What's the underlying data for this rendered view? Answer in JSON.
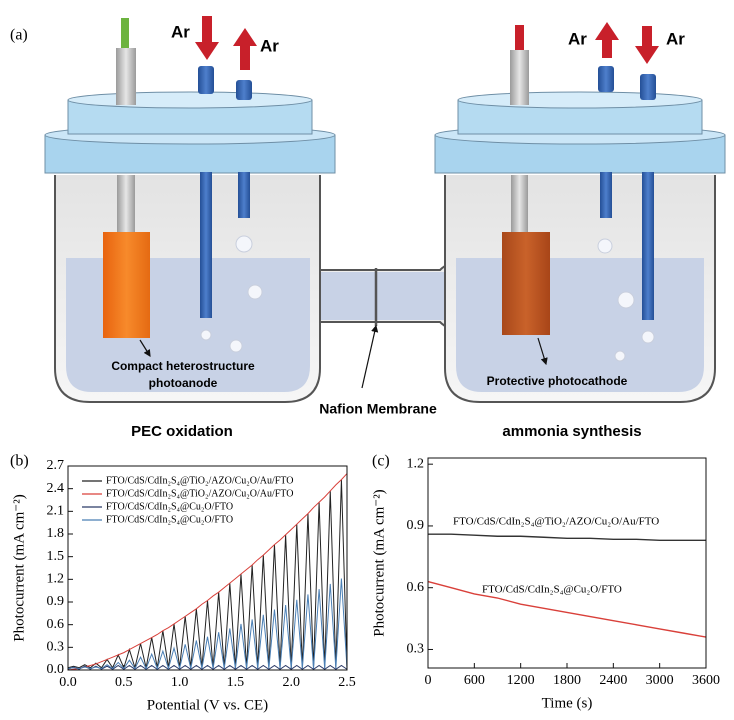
{
  "diagram": {
    "panel": "(a)",
    "gas_labels": [
      "Ar",
      "Ar",
      "Ar",
      "Ar"
    ],
    "photoanode_label": [
      "Compact heterostructure",
      "photoanode"
    ],
    "photocathode_label": "Protective photocathode",
    "membrane_label": "Nafion Membrane",
    "left_cell_label": "PEC oxidation",
    "right_cell_label": "ammonia synthesis"
  },
  "chart_data": [
    {
      "type": "line",
      "panel": "(b)",
      "x_label": "Potential (V vs. CE)",
      "y_label": "Photocurrent (mA cm⁻²)",
      "xlim": [
        0,
        2.5
      ],
      "ylim": [
        0,
        2.7
      ],
      "xticks": [
        {
          "value": 0,
          "label": "0.0"
        },
        0.5,
        {
          "value": 1,
          "label": "1.0"
        },
        1.5,
        {
          "value": 2,
          "label": "2.0"
        },
        2.5
      ],
      "yticks": [
        {
          "value": 0,
          "label": "0.0"
        },
        0.3,
        0.6,
        0.9,
        1.2,
        1.5,
        1.8,
        2.1,
        2.4,
        2.7
      ],
      "legend": "upper left",
      "x": [
        0,
        0.05,
        0.1,
        0.15,
        0.2,
        0.25,
        0.3,
        0.35,
        0.4,
        0.45,
        0.5,
        0.55,
        0.6,
        0.65,
        0.7,
        0.75,
        0.8,
        0.85,
        0.9,
        0.95,
        1,
        1.05,
        1.1,
        1.15,
        1.2,
        1.25,
        1.3,
        1.35,
        1.4,
        1.45,
        1.5,
        1.55,
        1.6,
        1.65,
        1.7,
        1.75,
        1.8,
        1.85,
        1.9,
        1.95,
        2,
        2.05,
        2.1,
        2.15,
        2.2,
        2.25,
        2.3,
        2.35,
        2.4,
        2.45,
        2.5
      ],
      "series": [
        {
          "name": "FTO/CdS/CdIn₂S₄@TiO₂/AZO/Cu₂O/Au/FTO",
          "color": "#222222",
          "values": [
            0.03,
            0.05,
            0.03,
            0.07,
            0.03,
            0.09,
            0.03,
            0.14,
            0.03,
            0.2,
            0.03,
            0.27,
            0.03,
            0.35,
            0.03,
            0.43,
            0.03,
            0.52,
            0.03,
            0.61,
            0.03,
            0.71,
            0.03,
            0.81,
            0.03,
            0.92,
            0.03,
            1.03,
            0.03,
            1.15,
            0.03,
            1.27,
            0.03,
            1.39,
            0.03,
            1.52,
            0.03,
            1.66,
            0.03,
            1.79,
            0.03,
            1.93,
            0.03,
            2.07,
            0.03,
            2.22,
            0.03,
            2.37,
            0.03,
            2.52,
            0.03
          ]
        },
        {
          "name": "FTO/CdS/CdIn₂S₄@TiO₂/AZO/Cu₂O/Au/FTO",
          "color": "#d9403a",
          "values": [
            0,
            0.01,
            0.02,
            0.04,
            0.06,
            0.08,
            0.11,
            0.14,
            0.17,
            0.2,
            0.23,
            0.27,
            0.31,
            0.35,
            0.39,
            0.43,
            0.47,
            0.52,
            0.56,
            0.61,
            0.66,
            0.71,
            0.76,
            0.81,
            0.87,
            0.92,
            0.98,
            1.03,
            1.09,
            1.15,
            1.21,
            1.27,
            1.33,
            1.39,
            1.46,
            1.52,
            1.59,
            1.66,
            1.72,
            1.79,
            1.86,
            1.93,
            2,
            2.07,
            2.15,
            2.22,
            2.29,
            2.37,
            2.45,
            2.52,
            2.6
          ]
        },
        {
          "name": "FTO/CdS/CdIn₂S₄@Cu₂O/FTO",
          "color": "#2b3a67",
          "values": [
            0.01,
            0.04,
            0.01,
            0.05,
            0.01,
            0.05,
            0.01,
            0.05,
            0.01,
            0.06,
            0.01,
            0.06,
            0.01,
            0.06,
            0.01,
            0.06,
            0.01,
            0.06,
            0.01,
            0.06,
            0.01,
            0.06,
            0.01,
            0.06,
            0.01,
            0.06,
            0.01,
            0.06,
            0.01,
            0.06,
            0.01,
            0.06,
            0.01,
            0.06,
            0.01,
            0.06,
            0.01,
            0.06,
            0.01,
            0.06,
            0.01,
            0.06,
            0.01,
            0.06,
            0.01,
            0.06,
            0.01,
            0.06,
            0.01,
            0.06,
            0.01
          ]
        },
        {
          "name": "FTO/CdS/CdIn₂S₄@Cu₂O/FTO",
          "color": "#4a7fb5",
          "values": [
            0.02,
            0.03,
            0.02,
            0.04,
            0.02,
            0.04,
            0.02,
            0.07,
            0.02,
            0.1,
            0.02,
            0.13,
            0.02,
            0.17,
            0.02,
            0.21,
            0.02,
            0.25,
            0.02,
            0.29,
            0.02,
            0.34,
            0.02,
            0.39,
            0.02,
            0.44,
            0.02,
            0.5,
            0.02,
            0.55,
            0.02,
            0.61,
            0.02,
            0.67,
            0.02,
            0.73,
            0.02,
            0.8,
            0.02,
            0.86,
            0.02,
            0.93,
            0.02,
            1,
            0.02,
            1.07,
            0.02,
            1.14,
            0.02,
            1.21,
            0.02
          ]
        }
      ]
    },
    {
      "type": "line",
      "panel": "(c)",
      "x_label": "Time (s)",
      "y_label": "Photocurrent (mA cm⁻²)",
      "xlim": [
        0,
        3600
      ],
      "ylim": [
        0.21,
        1.23
      ],
      "xticks": [
        0,
        600,
        1200,
        1800,
        2400,
        3000,
        3600
      ],
      "yticks": [
        0.3,
        0.6,
        0.9,
        1.2
      ],
      "x": [
        0,
        300,
        600,
        900,
        1200,
        1500,
        1800,
        2100,
        2400,
        2700,
        3000,
        3300,
        3600
      ],
      "series": [
        {
          "name": "FTO/CdS/CdIn₂S₄@TiO₂/AZO/Cu₂O/Au/FTO",
          "color": "#333333",
          "values": [
            0.86,
            0.86,
            0.855,
            0.85,
            0.85,
            0.845,
            0.84,
            0.84,
            0.835,
            0.835,
            0.83,
            0.83,
            0.83
          ]
        },
        {
          "name": "FTO/CdS/CdIn₂S₄@Cu₂O/FTO",
          "color": "#d9403a",
          "values": [
            0.63,
            0.6,
            0.57,
            0.55,
            0.52,
            0.5,
            0.48,
            0.46,
            0.44,
            0.42,
            0.4,
            0.38,
            0.36
          ]
        }
      ]
    }
  ]
}
